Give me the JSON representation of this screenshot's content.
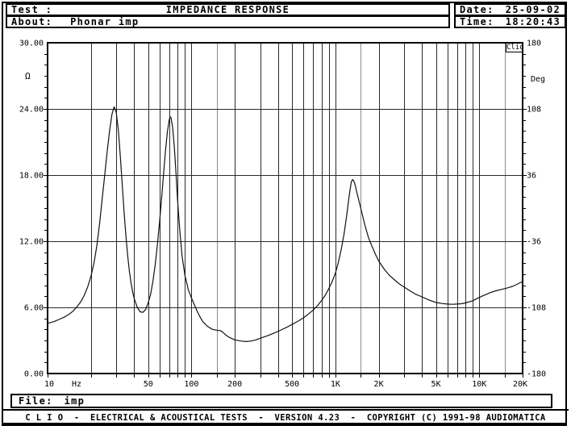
{
  "header": {
    "test_label": "Test :",
    "title": "IMPEDANCE RESPONSE",
    "about_label": "About:",
    "about_value": "Phonar imp",
    "date_label": "Date:",
    "date_value": "25-09-02",
    "time_label": "Time:",
    "time_value": "18:20:43"
  },
  "plot": {
    "clio_badge": "Clio",
    "ohm_unit": "Ω",
    "deg_unit": "Deg"
  },
  "chart_data": {
    "type": "line",
    "title": "IMPEDANCE RESPONSE",
    "x_axis": {
      "label": "Hz",
      "scale": "log",
      "min": 10,
      "max": 20000,
      "tick_labels": [
        {
          "f": 10,
          "label": "10"
        },
        {
          "f": 50,
          "label": "50"
        },
        {
          "f": 100,
          "label": "100"
        },
        {
          "f": 200,
          "label": "200"
        },
        {
          "f": 500,
          "label": "500"
        },
        {
          "f": 1000,
          "label": "1K"
        },
        {
          "f": 2000,
          "label": "2K"
        },
        {
          "f": 5000,
          "label": "5K"
        },
        {
          "f": 10000,
          "label": "10K"
        },
        {
          "f": 20000,
          "label": "20K"
        }
      ]
    },
    "y_left_axis": {
      "label": "Ω",
      "min": 0,
      "max": 30,
      "tick_values": [
        30,
        24,
        18,
        12,
        6,
        0
      ],
      "tick_labels": [
        "30.00",
        "24.00",
        "18.00",
        "12.00",
        "6.00",
        "0.00"
      ],
      "minor_tick_step": 1
    },
    "y_right_axis": {
      "label": "Deg",
      "min": -180,
      "max": 180,
      "tick_values": [
        30,
        24,
        18,
        12,
        6,
        0
      ],
      "tick_labels": [
        "180",
        "108",
        "36",
        "-36",
        "-108",
        "-180"
      ]
    },
    "grid": {
      "x_lines_black": [
        20,
        30,
        40,
        50,
        60,
        70,
        80,
        90,
        100,
        200,
        300,
        400,
        500,
        600,
        700,
        800,
        900,
        1000,
        2000,
        3000,
        4000,
        5000,
        6000,
        7000,
        8000,
        9000,
        10000
      ],
      "x_lines_gray": [
        150,
        1500,
        15000
      ],
      "y_lines": [
        6,
        12,
        18,
        24
      ]
    },
    "series": [
      {
        "name": "impedance",
        "unit": "ohm",
        "points": [
          [
            10,
            4.55
          ],
          [
            11,
            4.7
          ],
          [
            12,
            4.9
          ],
          [
            13,
            5.1
          ],
          [
            14,
            5.35
          ],
          [
            15,
            5.65
          ],
          [
            16,
            6.05
          ],
          [
            17,
            6.5
          ],
          [
            18,
            7.1
          ],
          [
            19,
            7.85
          ],
          [
            20,
            8.8
          ],
          [
            21,
            10.0
          ],
          [
            22,
            11.6
          ],
          [
            23,
            13.6
          ],
          [
            24,
            15.9
          ],
          [
            25,
            18.1
          ],
          [
            26,
            20.2
          ],
          [
            27,
            22.1
          ],
          [
            28,
            23.5
          ],
          [
            29,
            24.2
          ],
          [
            30,
            23.7
          ],
          [
            31,
            22.1
          ],
          [
            32,
            19.8
          ],
          [
            33,
            17.2
          ],
          [
            34,
            14.7
          ],
          [
            35,
            12.5
          ],
          [
            36,
            10.7
          ],
          [
            37,
            9.3
          ],
          [
            38,
            8.2
          ],
          [
            39,
            7.4
          ],
          [
            40,
            6.8
          ],
          [
            42,
            6.0
          ],
          [
            44,
            5.6
          ],
          [
            46,
            5.55
          ],
          [
            48,
            5.8
          ],
          [
            50,
            6.4
          ],
          [
            52,
            7.2
          ],
          [
            54,
            8.4
          ],
          [
            56,
            9.9
          ],
          [
            58,
            11.7
          ],
          [
            60,
            13.7
          ],
          [
            62,
            15.9
          ],
          [
            64,
            18.1
          ],
          [
            66,
            20.2
          ],
          [
            68,
            21.9
          ],
          [
            70,
            23.0
          ],
          [
            71,
            23.3
          ],
          [
            72,
            23.2
          ],
          [
            74,
            22.3
          ],
          [
            76,
            20.5
          ],
          [
            78,
            18.2
          ],
          [
            80,
            15.8
          ],
          [
            83,
            12.9
          ],
          [
            86,
            10.7
          ],
          [
            90,
            8.9
          ],
          [
            95,
            7.6
          ],
          [
            100,
            6.85
          ],
          [
            105,
            6.2
          ],
          [
            110,
            5.6
          ],
          [
            115,
            5.1
          ],
          [
            120,
            4.7
          ],
          [
            130,
            4.25
          ],
          [
            140,
            4.0
          ],
          [
            150,
            3.93
          ],
          [
            160,
            3.88
          ],
          [
            168,
            3.65
          ],
          [
            175,
            3.45
          ],
          [
            185,
            3.25
          ],
          [
            200,
            3.05
          ],
          [
            220,
            2.95
          ],
          [
            240,
            2.9
          ],
          [
            260,
            2.95
          ],
          [
            280,
            3.05
          ],
          [
            300,
            3.2
          ],
          [
            340,
            3.45
          ],
          [
            380,
            3.7
          ],
          [
            420,
            3.95
          ],
          [
            460,
            4.2
          ],
          [
            500,
            4.45
          ],
          [
            550,
            4.75
          ],
          [
            600,
            5.05
          ],
          [
            650,
            5.4
          ],
          [
            700,
            5.75
          ],
          [
            750,
            6.15
          ],
          [
            800,
            6.6
          ],
          [
            850,
            7.1
          ],
          [
            900,
            7.7
          ],
          [
            950,
            8.35
          ],
          [
            1000,
            9.1
          ],
          [
            1050,
            10.1
          ],
          [
            1100,
            11.3
          ],
          [
            1150,
            12.7
          ],
          [
            1200,
            14.4
          ],
          [
            1250,
            16.2
          ],
          [
            1290,
            17.4
          ],
          [
            1320,
            17.6
          ],
          [
            1360,
            17.3
          ],
          [
            1400,
            16.6
          ],
          [
            1500,
            15.0
          ],
          [
            1600,
            13.5
          ],
          [
            1700,
            12.3
          ],
          [
            1800,
            11.5
          ],
          [
            1900,
            10.8
          ],
          [
            2000,
            10.2
          ],
          [
            2200,
            9.4
          ],
          [
            2400,
            8.85
          ],
          [
            2600,
            8.45
          ],
          [
            2800,
            8.1
          ],
          [
            3000,
            7.85
          ],
          [
            3300,
            7.5
          ],
          [
            3600,
            7.2
          ],
          [
            4000,
            6.95
          ],
          [
            4500,
            6.65
          ],
          [
            5000,
            6.45
          ],
          [
            5500,
            6.35
          ],
          [
            6000,
            6.3
          ],
          [
            6500,
            6.28
          ],
          [
            7000,
            6.3
          ],
          [
            7500,
            6.33
          ],
          [
            8000,
            6.4
          ],
          [
            9000,
            6.6
          ],
          [
            10000,
            6.9
          ],
          [
            11000,
            7.15
          ],
          [
            12000,
            7.35
          ],
          [
            13000,
            7.5
          ],
          [
            14000,
            7.6
          ],
          [
            15000,
            7.7
          ],
          [
            16000,
            7.8
          ],
          [
            17000,
            7.9
          ],
          [
            18000,
            8.05
          ],
          [
            19000,
            8.2
          ],
          [
            20000,
            8.35
          ]
        ]
      }
    ],
    "colors": {
      "grid_black": "#2a2a2a",
      "grid_gray": "#8a8a8a",
      "border": "#000000",
      "curve": "#111111"
    },
    "legend": "none"
  },
  "file_bar": {
    "label": "File:",
    "value": "imp"
  },
  "footer": {
    "text": "C L I O  -  ELECTRICAL & ACOUSTICAL TESTS  -  VERSION 4.23  -  COPYRIGHT (C) 1991-98 AUDIOMATICA"
  }
}
